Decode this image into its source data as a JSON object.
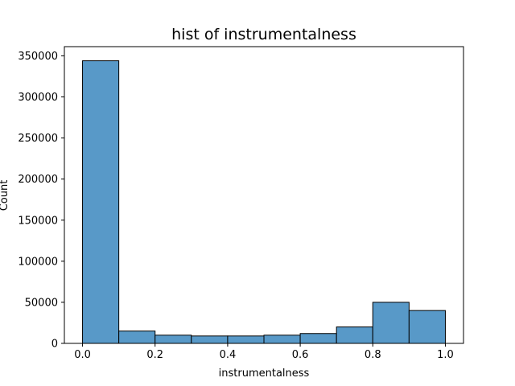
{
  "chart_data": {
    "type": "bar",
    "title": "hist of instrumentalness",
    "xlabel": "instrumentalness",
    "ylabel": "Count",
    "bins": [
      {
        "x0": 0.0,
        "x1": 0.1,
        "value": 344000
      },
      {
        "x0": 0.1,
        "x1": 0.2,
        "value": 15000
      },
      {
        "x0": 0.2,
        "x1": 0.3,
        "value": 10000
      },
      {
        "x0": 0.3,
        "x1": 0.4,
        "value": 9000
      },
      {
        "x0": 0.4,
        "x1": 0.5,
        "value": 9000
      },
      {
        "x0": 0.5,
        "x1": 0.6,
        "value": 10000
      },
      {
        "x0": 0.6,
        "x1": 0.7,
        "value": 12000
      },
      {
        "x0": 0.7,
        "x1": 0.8,
        "value": 20000
      },
      {
        "x0": 0.8,
        "x1": 0.9,
        "value": 50000
      },
      {
        "x0": 0.9,
        "x1": 1.0,
        "value": 40000
      }
    ],
    "xlim": [
      -0.05,
      1.05
    ],
    "ylim": [
      0,
      361200
    ],
    "xticks": [
      0.0,
      0.2,
      0.4,
      0.6,
      0.8,
      1.0
    ],
    "xtick_labels": [
      "0.0",
      "0.2",
      "0.4",
      "0.6",
      "0.8",
      "1.0"
    ],
    "yticks": [
      0,
      50000,
      100000,
      150000,
      200000,
      250000,
      300000,
      350000
    ],
    "ytick_labels": [
      "0",
      "50000",
      "100000",
      "150000",
      "200000",
      "250000",
      "300000",
      "350000"
    ],
    "grid": false,
    "colors": {
      "bar_fill": "#5899c8",
      "bar_edge": "#000000",
      "axes": "#000000"
    }
  }
}
